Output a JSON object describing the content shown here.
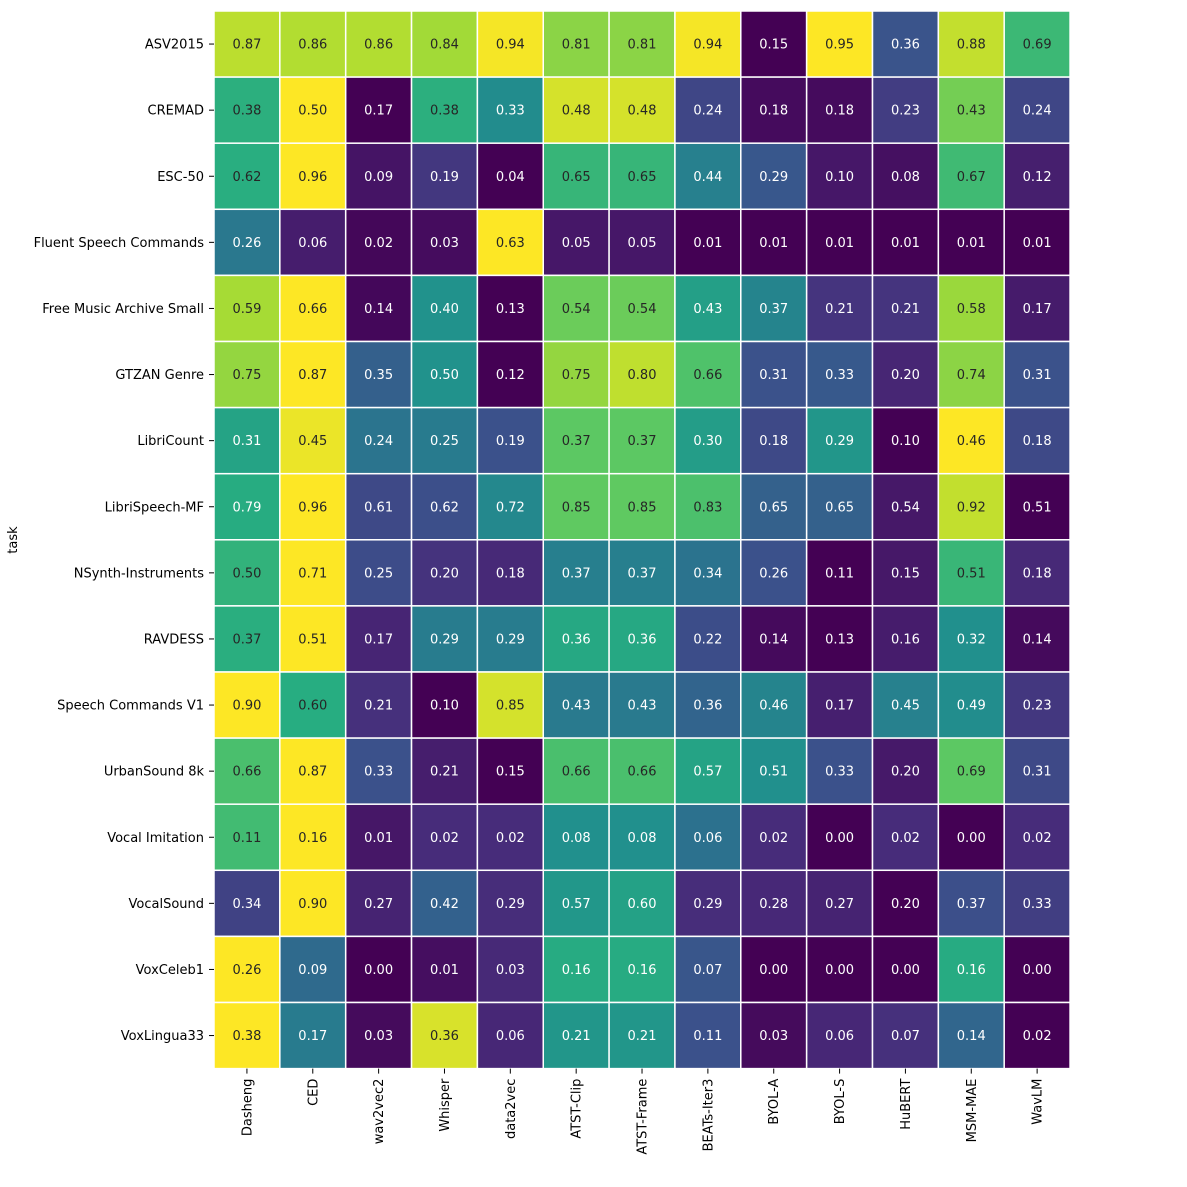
{
  "chart_data": {
    "type": "heatmap",
    "ylabel": "task",
    "xlabel": "",
    "colormap": "viridis",
    "color_scaling": "per-row",
    "cell_border_color": "#ffffff",
    "colorbar": false,
    "columns": [
      "Dasheng",
      "CED",
      "wav2vec2",
      "Whisper",
      "data2vec",
      "ATST-Clip",
      "ATST-Frame",
      "BEATs-Iter3",
      "BYOL-A",
      "BYOL-S",
      "HuBERT",
      "MSM-MAE",
      "WavLM"
    ],
    "rows": [
      "ASV2015",
      "CREMAD",
      "ESC-50",
      "Fluent Speech Commands",
      "Free Music Archive Small",
      "GTZAN Genre",
      "LibriCount",
      "LibriSpeech-MF",
      "NSynth-Instruments",
      "RAVDESS",
      "Speech Commands V1",
      "UrbanSound 8k",
      "Vocal Imitation",
      "VocalSound",
      "VoxCeleb1",
      "VoxLingua33"
    ],
    "values": [
      [
        0.87,
        0.86,
        0.86,
        0.84,
        0.94,
        0.81,
        0.81,
        0.94,
        0.15,
        0.95,
        0.36,
        0.88,
        0.69
      ],
      [
        0.38,
        0.5,
        0.17,
        0.38,
        0.33,
        0.48,
        0.48,
        0.24,
        0.18,
        0.18,
        0.23,
        0.43,
        0.24
      ],
      [
        0.62,
        0.96,
        0.09,
        0.19,
        0.04,
        0.65,
        0.65,
        0.44,
        0.29,
        0.1,
        0.08,
        0.67,
        0.12
      ],
      [
        0.26,
        0.06,
        0.02,
        0.03,
        0.63,
        0.05,
        0.05,
        0.01,
        0.01,
        0.01,
        0.01,
        0.01,
        0.01
      ],
      [
        0.59,
        0.66,
        0.14,
        0.4,
        0.13,
        0.54,
        0.54,
        0.43,
        0.37,
        0.21,
        0.21,
        0.58,
        0.17
      ],
      [
        0.75,
        0.87,
        0.35,
        0.5,
        0.12,
        0.75,
        0.8,
        0.66,
        0.31,
        0.33,
        0.2,
        0.74,
        0.31
      ],
      [
        0.31,
        0.45,
        0.24,
        0.25,
        0.19,
        0.37,
        0.37,
        0.3,
        0.18,
        0.29,
        0.1,
        0.46,
        0.18
      ],
      [
        0.79,
        0.96,
        0.61,
        0.62,
        0.72,
        0.85,
        0.85,
        0.83,
        0.65,
        0.65,
        0.54,
        0.92,
        0.51
      ],
      [
        0.5,
        0.71,
        0.25,
        0.2,
        0.18,
        0.37,
        0.37,
        0.34,
        0.26,
        0.11,
        0.15,
        0.51,
        0.18
      ],
      [
        0.37,
        0.51,
        0.17,
        0.29,
        0.29,
        0.36,
        0.36,
        0.22,
        0.14,
        0.13,
        0.16,
        0.32,
        0.14
      ],
      [
        0.9,
        0.6,
        0.21,
        0.1,
        0.85,
        0.43,
        0.43,
        0.36,
        0.46,
        0.17,
        0.45,
        0.49,
        0.23
      ],
      [
        0.66,
        0.87,
        0.33,
        0.21,
        0.15,
        0.66,
        0.66,
        0.57,
        0.51,
        0.33,
        0.2,
        0.69,
        0.31
      ],
      [
        0.11,
        0.16,
        0.01,
        0.02,
        0.02,
        0.08,
        0.08,
        0.06,
        0.02,
        0.0,
        0.02,
        0.0,
        0.02
      ],
      [
        0.34,
        0.9,
        0.27,
        0.42,
        0.29,
        0.57,
        0.6,
        0.29,
        0.28,
        0.27,
        0.2,
        0.37,
        0.33
      ],
      [
        0.26,
        0.09,
        0.0,
        0.01,
        0.03,
        0.16,
        0.16,
        0.07,
        0.0,
        0.0,
        0.0,
        0.16,
        0.0
      ],
      [
        0.38,
        0.17,
        0.03,
        0.36,
        0.06,
        0.21,
        0.21,
        0.11,
        0.03,
        0.06,
        0.07,
        0.14,
        0.02
      ]
    ]
  }
}
